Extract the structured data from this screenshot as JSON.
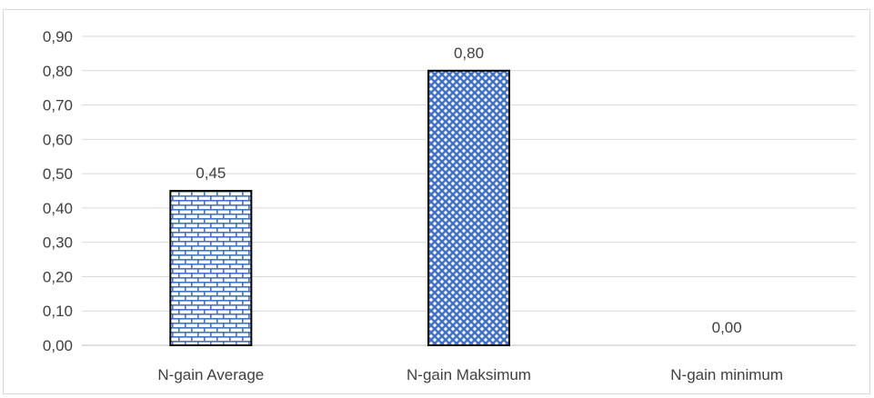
{
  "chart_data": {
    "type": "bar",
    "title": "",
    "xlabel": "",
    "ylabel": "",
    "categories": [
      "N-gain Average",
      "N-gain Maksimum",
      "N-gain minimum"
    ],
    "values": [
      0.45,
      0.8,
      0.0
    ],
    "data_labels": [
      "0,45",
      "0,80",
      "0,00"
    ],
    "ylim": [
      0,
      0.9
    ],
    "y_ticks": [
      "0,00",
      "0,10",
      "0,20",
      "0,30",
      "0,40",
      "0,50",
      "0,60",
      "0,70",
      "0,80",
      "0,90"
    ],
    "grid": true,
    "legend": "none",
    "bar_patterns": [
      "brick",
      "dots",
      "none"
    ],
    "colors": {
      "bar_pattern": "#4472c4",
      "bar_outline": "#000000",
      "grid": "#d9d9d9",
      "text": "#404040"
    }
  }
}
